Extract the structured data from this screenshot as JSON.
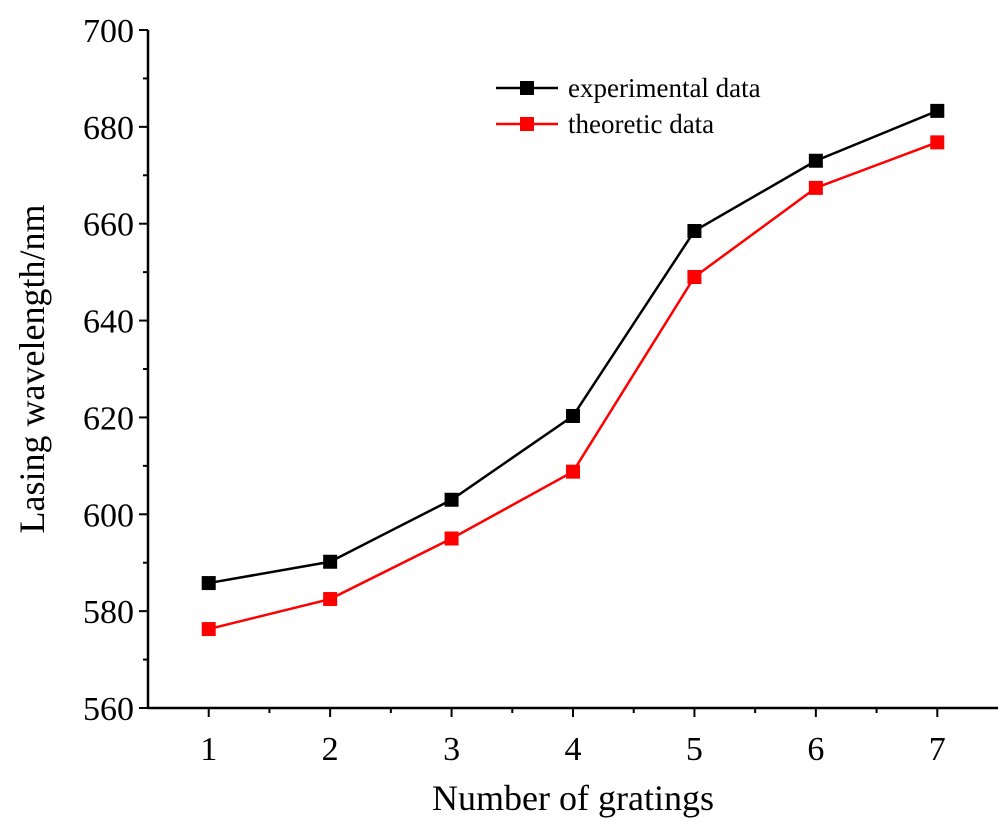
{
  "chart_data": {
    "type": "line",
    "title": "",
    "xlabel": "Number of gratings",
    "ylabel": "Lasing wavelength/nm",
    "x": [
      1,
      2,
      3,
      4,
      5,
      6,
      7
    ],
    "xlim": [
      0.5,
      7.5
    ],
    "ylim": [
      560,
      700
    ],
    "x_ticks": [
      "1",
      "2",
      "3",
      "4",
      "5",
      "6",
      "7"
    ],
    "y_ticks": [
      "560",
      "580",
      "600",
      "620",
      "640",
      "660",
      "680",
      "700"
    ],
    "grid": false,
    "legend_position": "top-right",
    "series": [
      {
        "name": "experimental data",
        "color": "#000000",
        "marker": "square",
        "values": [
          585.8,
          590.2,
          603.0,
          620.3,
          658.5,
          673.0,
          683.3
        ]
      },
      {
        "name": "theoretic data",
        "color": "#ff0000",
        "marker": "square",
        "values": [
          576.3,
          582.5,
          595.0,
          608.8,
          649.0,
          667.4,
          676.8
        ]
      }
    ]
  }
}
